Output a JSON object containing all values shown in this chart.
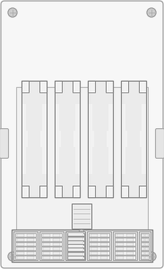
{
  "bg_color": "#ffffff",
  "outer_fill": "#f7f7f7",
  "outer_edge": "#aaaaaa",
  "inner_fill": "#f2f2f2",
  "inner_edge": "#bbbbbb",
  "relay_fill": "#ebebeb",
  "relay_edge": "#888888",
  "fuse_block_fill": "#e8e8e8",
  "fuse_block_edge": "#888888",
  "fuse_fill": "#f5f5f5",
  "fuse_edge": "#888888",
  "center_col_fill": "#e0e0e0",
  "notch_fill": "#f2f2f2",
  "screw_fill": "#cccccc",
  "screw_edge": "#999999",
  "tab_fill": "#e5e5e5",
  "tab_edge": "#aaaaaa",
  "figw": 1.83,
  "figh": 3.0,
  "dpi": 100
}
